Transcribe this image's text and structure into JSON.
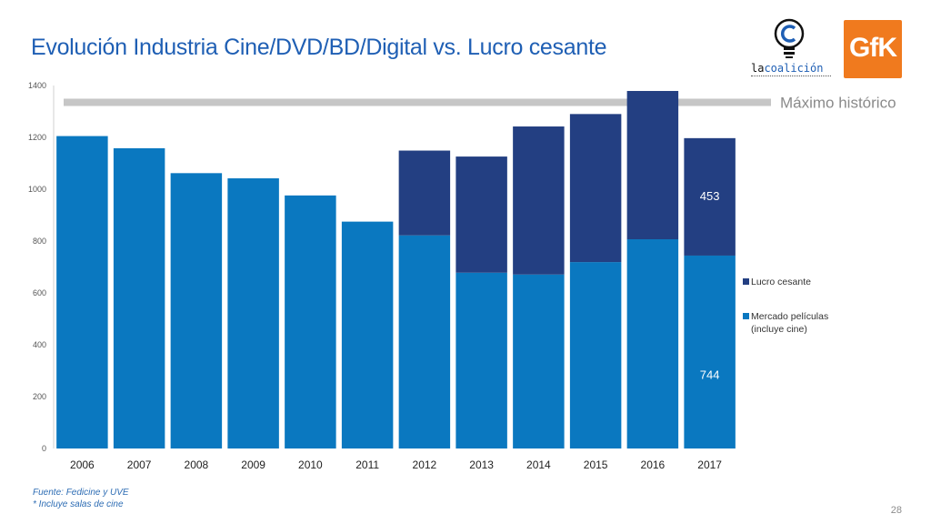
{
  "header": {
    "title": "Evolución Industria Cine/DVD/BD/Digital vs. Lucro cesante"
  },
  "logos": {
    "coalicion_text_a": "la",
    "coalicion_text_b": "coalición",
    "gfk_text": "GfK"
  },
  "chart_data": {
    "type": "bar",
    "stacked": true,
    "categories": [
      "2006",
      "2007",
      "2008",
      "2009",
      "2010",
      "2011",
      "2012",
      "2013",
      "2014",
      "2015",
      "2016",
      "2017"
    ],
    "series": [
      {
        "name": "Mercado películas (incluye cine)",
        "color": "#0a78c0",
        "values": [
          1205,
          1158,
          1062,
          1042,
          976,
          875,
          822,
          678,
          671,
          719,
          807,
          744
        ]
      },
      {
        "name": "Lucro cesante",
        "color": "#233f82",
        "values": [
          0,
          0,
          0,
          0,
          0,
          0,
          327,
          448,
          571,
          571,
          572,
          453
        ]
      }
    ],
    "ylim": [
      0,
      1400
    ],
    "yticks": [
      0,
      200,
      400,
      600,
      800,
      1000,
      1200,
      1400
    ],
    "grid": false,
    "data_labels": [
      {
        "category": "2017",
        "series": "Mercado películas (incluye cine)",
        "text": "744"
      },
      {
        "category": "2017",
        "series": "Lucro cesante",
        "text": "453"
      }
    ],
    "reference_line": {
      "value": 1335,
      "label": "Máximo histórico",
      "color": "#c6c6c6"
    },
    "legend": {
      "placement": "right",
      "entries": [
        {
          "label_lines": [
            "Lucro cesante"
          ],
          "color": "#233f82"
        },
        {
          "label_lines": [
            "Mercado películas",
            "(incluye cine)"
          ],
          "color": "#0a78c0"
        }
      ]
    }
  },
  "footer": {
    "source": "Fuente: Fedicine y UVE",
    "note": "* Incluye salas de cine",
    "page_number": "28"
  }
}
